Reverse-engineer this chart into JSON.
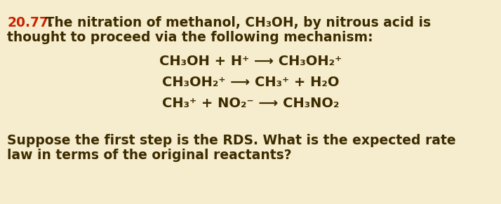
{
  "background_color": "#F5EDCD",
  "number_color": "#CC2200",
  "text_color": "#3D2B00",
  "number": "20.77.",
  "intro_line1_after_number": " The nitration of methanol, CH₃OH, by nitrous acid is",
  "intro_line2": "thought to proceed via the following mechanism:",
  "reaction1": "CH₃OH + H⁺ ⟶ CH₃OH₂⁺",
  "reaction2": "CH₃OH₂⁺ ⟶ CH₃⁺ + H₂O",
  "reaction3": "CH₃⁺ + NO₂⁻ ⟶ CH₃NO₂",
  "footer_line1": "Suppose the first step is the RDS. What is the expected rate",
  "footer_line2": "law in terms of the original reactants?",
  "font_size": 13.5,
  "font_size_reaction": 14.0
}
